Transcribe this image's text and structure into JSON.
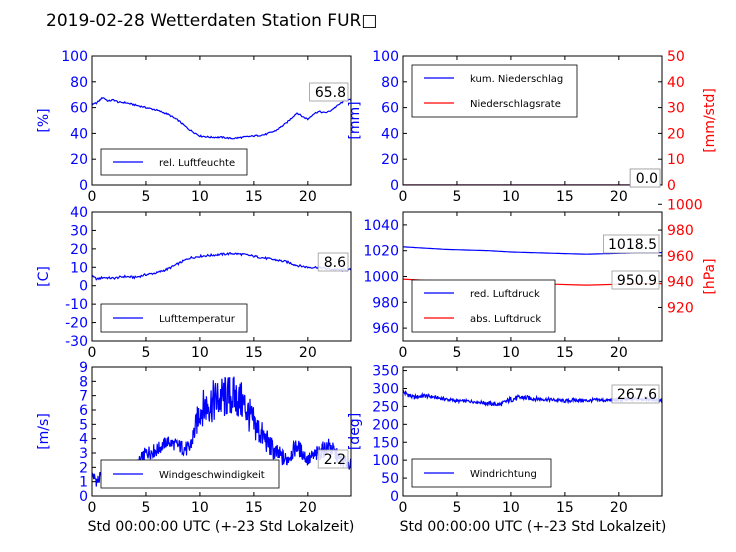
{
  "title": "2019-02-28 Wetterdaten Station FUR□",
  "x_axis_label": "Std 00:00:00 UTC (+-23 Std Lokalzeit)",
  "colors": {
    "blue": "#0000ff",
    "red": "#ff0000",
    "black": "#000000"
  },
  "chart_data": [
    {
      "id": "humidity",
      "type": "line",
      "ylabel": "[%]",
      "ylim": [
        0,
        100
      ],
      "yticks": [
        0,
        20,
        40,
        60,
        80,
        100
      ],
      "xlim": [
        0,
        24
      ],
      "xticks": [
        0,
        5,
        10,
        15,
        20
      ],
      "legend": {
        "placement": "lower-left",
        "entries": [
          "rel. Luftfeuchte"
        ]
      },
      "annotation": "65.8",
      "series": [
        {
          "name": "rel. Luftfeuchte",
          "color": "#0000ff",
          "x": [
            0,
            0.5,
            1.0,
            1.5,
            2.0,
            2.5,
            3,
            4,
            5,
            6,
            7,
            8,
            9,
            10,
            11,
            12,
            13,
            14,
            15,
            16,
            17,
            18,
            18.5,
            19,
            19.5,
            20,
            20.5,
            21,
            21.5,
            22,
            22.5,
            23,
            23.5,
            24
          ],
          "y": [
            62,
            64,
            68,
            65,
            66,
            64,
            64,
            62,
            60,
            58,
            55,
            50,
            43,
            38,
            37,
            37,
            36,
            37,
            38,
            39,
            42,
            48,
            52,
            56,
            53,
            51,
            55,
            57,
            56,
            57,
            60,
            63,
            66,
            65.8
          ]
        }
      ]
    },
    {
      "id": "precip",
      "type": "line",
      "ylabel": "[mm]",
      "ylim": [
        0,
        100
      ],
      "yticks": [
        0,
        20,
        40,
        60,
        80,
        100
      ],
      "y2label": "[mm/std]",
      "y2lim": [
        0,
        50
      ],
      "y2ticks": [
        0,
        10,
        20,
        30,
        40,
        50
      ],
      "xlim": [
        0,
        24
      ],
      "xticks": [
        0,
        5,
        10,
        15,
        20
      ],
      "legend": {
        "placement": "upper-left",
        "entries": [
          "kum. Niederschlag",
          "Niederschlagsrate"
        ]
      },
      "annotation": "0.0",
      "annotation2": "0.0",
      "series": [
        {
          "name": "kum. Niederschlag",
          "color": "#0000ff",
          "axis": "left",
          "x": [
            0,
            24
          ],
          "y": [
            0,
            0
          ]
        },
        {
          "name": "Niederschlagsrate",
          "color": "#ff0000",
          "axis": "right",
          "x": [
            0,
            24
          ],
          "y": [
            0,
            0
          ]
        }
      ]
    },
    {
      "id": "temperature",
      "type": "line",
      "ylabel": "[C]",
      "ylim": [
        -30,
        40
      ],
      "yticks": [
        -30,
        -20,
        -10,
        0,
        10,
        20,
        30,
        40
      ],
      "xlim": [
        0,
        24
      ],
      "xticks": [
        0,
        5,
        10,
        15,
        20
      ],
      "legend": {
        "placement": "lower-left",
        "entries": [
          "Lufttemperatur"
        ]
      },
      "annotation": "8.6",
      "series": [
        {
          "name": "Lufttemperatur",
          "color": "#0000ff",
          "x": [
            0,
            0.5,
            1,
            2,
            3,
            4,
            5,
            6,
            7,
            8,
            9,
            10,
            11,
            12,
            13,
            14,
            15,
            16,
            17,
            18,
            19,
            20,
            21,
            22,
            23,
            24
          ],
          "y": [
            5,
            3.5,
            4.5,
            4,
            5,
            4.5,
            6,
            7,
            9,
            12,
            15,
            16,
            16.5,
            17,
            17.5,
            17,
            16,
            15,
            14,
            13,
            11,
            10,
            10,
            9,
            8.6,
            8.6
          ]
        }
      ]
    },
    {
      "id": "pressure",
      "type": "line",
      "ylim": [
        950,
        1050
      ],
      "yticks": [
        960,
        980,
        1000,
        1020,
        1040
      ],
      "y2label": "[hPa]",
      "y2ticks": [
        920,
        940,
        960,
        980,
        1000
      ],
      "xlim": [
        0,
        24
      ],
      "xticks": [
        0,
        5,
        10,
        15,
        20
      ],
      "legend": {
        "placement": "lower-left",
        "entries": [
          "red. Luftdruck",
          "abs. Luftdruck"
        ]
      },
      "annotation": "1018.5",
      "annotation2": "950.9",
      "series": [
        {
          "name": "red. Luftdruck",
          "color": "#0000ff",
          "x": [
            0,
            2,
            4,
            6,
            8,
            10,
            12,
            14,
            16,
            17,
            18,
            20,
            22,
            24
          ],
          "y": [
            1023,
            1022,
            1021,
            1020.5,
            1020,
            1019,
            1018.5,
            1018,
            1017.5,
            1017.3,
            1017.5,
            1018,
            1018.5,
            1018.5
          ]
        },
        {
          "name": "abs. Luftdruck",
          "color": "#ff0000",
          "x": [
            0,
            2,
            4,
            6,
            8,
            10,
            12,
            14,
            16,
            17,
            18,
            20,
            22,
            24
          ],
          "y": [
            994,
            993,
            992.5,
            992,
            991.5,
            991,
            990.5,
            990,
            989.5,
            989.3,
            989.5,
            990,
            990.5,
            990.5
          ]
        }
      ]
    },
    {
      "id": "wind_speed",
      "type": "line",
      "ylabel": "[m/s]",
      "ylim": [
        0,
        9
      ],
      "yticks": [
        0,
        1,
        2,
        3,
        4,
        5,
        6,
        7,
        8,
        9
      ],
      "xlim": [
        0,
        24
      ],
      "xticks": [
        0,
        5,
        10,
        15,
        20
      ],
      "legend": {
        "placement": "lower-center",
        "entries": [
          "Windgeschwindigkeit"
        ]
      },
      "annotation": "2.2",
      "series": [
        {
          "name": "Windgeschwindigkeit",
          "color": "#0000ff",
          "x": [
            0,
            0.5,
            1,
            1.5,
            2,
            3,
            4,
            5,
            6,
            7,
            8,
            9,
            9.5,
            10,
            11,
            12,
            13,
            14,
            15,
            16,
            17,
            18,
            19,
            20,
            21,
            22,
            23,
            24
          ],
          "y": [
            1.5,
            1.0,
            1.5,
            1.3,
            1.8,
            1.8,
            2.0,
            3.0,
            3.2,
            3.8,
            3.5,
            3.2,
            4.5,
            6.0,
            6.5,
            6.8,
            7.0,
            6.5,
            5.0,
            4.0,
            3.0,
            2.5,
            3.5,
            2.5,
            3.0,
            3.5,
            2.5,
            2.2
          ],
          "amp": [
            0.3,
            0.5,
            0.4,
            0.5,
            0.4,
            0.3,
            0.4,
            0.5,
            0.5,
            0.4,
            0.5,
            0.6,
            0.8,
            1.2,
            1.5,
            1.6,
            1.5,
            1.4,
            1.2,
            0.9,
            0.7,
            0.6,
            0.6,
            0.5,
            0.6,
            0.6,
            0.5,
            0.4
          ]
        }
      ]
    },
    {
      "id": "wind_dir",
      "type": "line",
      "ylabel": "[deg]",
      "ylim": [
        0,
        360
      ],
      "yticks": [
        0,
        50,
        100,
        150,
        200,
        250,
        300,
        350
      ],
      "xlim": [
        0,
        24
      ],
      "xticks": [
        0,
        5,
        10,
        15,
        20
      ],
      "legend": {
        "placement": "lower-left",
        "entries": [
          "Windrichtung"
        ]
      },
      "annotation": "267.6",
      "series": [
        {
          "name": "Windrichtung",
          "color": "#0000ff",
          "x": [
            0,
            1,
            2,
            3,
            4,
            5,
            6,
            7,
            8,
            9,
            10,
            11,
            12,
            13,
            14,
            15,
            16,
            17,
            18,
            19,
            20,
            21,
            22,
            23,
            24
          ],
          "y": [
            290,
            275,
            280,
            275,
            270,
            265,
            265,
            262,
            258,
            255,
            270,
            275,
            272,
            270,
            268,
            265,
            268,
            266,
            268,
            267,
            268,
            270,
            272,
            270,
            267.6
          ],
          "amp": [
            8,
            6,
            6,
            5,
            5,
            4,
            4,
            4,
            6,
            6,
            8,
            8,
            6,
            5,
            5,
            5,
            5,
            5,
            5,
            5,
            5,
            6,
            6,
            6,
            5
          ]
        }
      ]
    }
  ]
}
